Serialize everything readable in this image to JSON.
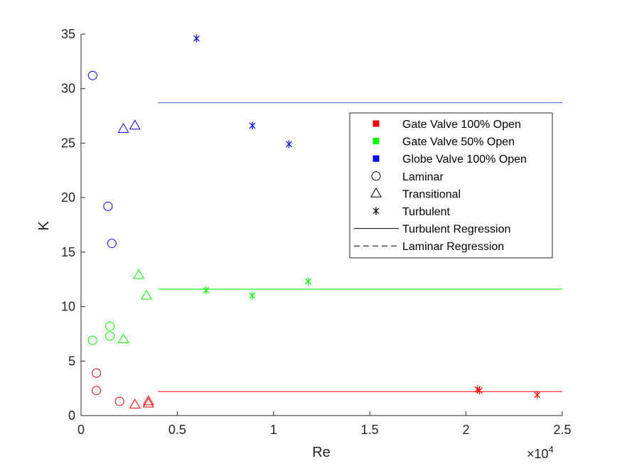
{
  "chart_data": {
    "type": "scatter",
    "xlabel": "Re",
    "ylabel": "K",
    "x_multiplier_label": "×10",
    "x_multiplier_exp": "4",
    "xlim": [
      0,
      25000
    ],
    "ylim": [
      0,
      35
    ],
    "xticks": [
      0,
      5000,
      10000,
      15000,
      20000,
      25000
    ],
    "xtick_labels": [
      "0",
      "0.5",
      "1",
      "1.5",
      "2",
      "2.5"
    ],
    "yticks": [
      0,
      5,
      10,
      15,
      20,
      25,
      30,
      35
    ],
    "ytick_labels": [
      "0",
      "5",
      "10",
      "15",
      "20",
      "25",
      "30",
      "35"
    ],
    "grid": false,
    "legend_position": "top-right",
    "colors": {
      "gate_100": "#ff0000",
      "gate_50": "#00ff00",
      "globe_100": "#0000ff",
      "axis": "#262626"
    },
    "legend": [
      {
        "label": "Gate Valve 100% Open",
        "kind": "square",
        "color": "#ff0000"
      },
      {
        "label": "Gate Valve 50% Open",
        "kind": "square",
        "color": "#00ff00"
      },
      {
        "label": "Globe Valve 100% Open",
        "kind": "square",
        "color": "#0000ff"
      },
      {
        "label": "Laminar",
        "kind": "circle",
        "color": "#000000"
      },
      {
        "label": "Transitional",
        "kind": "triangle",
        "color": "#000000"
      },
      {
        "label": "Turbulent",
        "kind": "asterisk",
        "color": "#000000"
      },
      {
        "label": "Turbulent Regression",
        "kind": "solid-line",
        "color": "#000000"
      },
      {
        "label": "Laminar Regression",
        "kind": "dashed-line",
        "color": "#000000"
      }
    ],
    "series": [
      {
        "name": "Gate Valve 100% Open",
        "regime": "Laminar",
        "marker": "circle",
        "color": "#ff0000",
        "points": [
          [
            800,
            3.9
          ],
          [
            800,
            2.3
          ],
          [
            2000,
            1.3
          ]
        ]
      },
      {
        "name": "Gate Valve 100% Open",
        "regime": "Transitional",
        "marker": "triangle",
        "color": "#ff0000",
        "points": [
          [
            2800,
            1.0
          ],
          [
            3500,
            1.3
          ],
          [
            3500,
            1.1
          ]
        ]
      },
      {
        "name": "Gate Valve 100% Open",
        "regime": "Turbulent",
        "marker": "asterisk",
        "color": "#ff0000",
        "points": [
          [
            20600,
            2.4
          ],
          [
            20700,
            2.3
          ],
          [
            23700,
            1.9
          ]
        ]
      },
      {
        "name": "Gate Valve 50% Open",
        "regime": "Laminar",
        "marker": "circle",
        "color": "#00ff00",
        "points": [
          [
            600,
            6.9
          ],
          [
            1500,
            7.3
          ],
          [
            1500,
            8.2
          ]
        ]
      },
      {
        "name": "Gate Valve 50% Open",
        "regime": "Transitional",
        "marker": "triangle",
        "color": "#00ff00",
        "points": [
          [
            2200,
            7.0
          ],
          [
            3000,
            12.9
          ],
          [
            3400,
            11.0
          ]
        ]
      },
      {
        "name": "Gate Valve 50% Open",
        "regime": "Turbulent",
        "marker": "asterisk",
        "color": "#00ff00",
        "points": [
          [
            6500,
            11.5
          ],
          [
            8900,
            11.0
          ],
          [
            11800,
            12.3
          ]
        ]
      },
      {
        "name": "Globe Valve 100% Open",
        "regime": "Laminar",
        "marker": "circle",
        "color": "#0000ff",
        "points": [
          [
            600,
            31.2
          ],
          [
            1400,
            19.2
          ],
          [
            1600,
            15.8
          ]
        ]
      },
      {
        "name": "Globe Valve 100% Open",
        "regime": "Transitional",
        "marker": "triangle",
        "color": "#0000ff",
        "points": [
          [
            2200,
            26.3
          ],
          [
            2800,
            26.6
          ]
        ]
      },
      {
        "name": "Globe Valve 100% Open",
        "regime": "Turbulent",
        "marker": "asterisk",
        "color": "#0000ff",
        "points": [
          [
            6000,
            34.6
          ],
          [
            8900,
            26.6
          ],
          [
            10800,
            24.9
          ]
        ]
      }
    ],
    "regressions": [
      {
        "type": "turbulent",
        "color": "#ff0000",
        "x": [
          4000,
          25000
        ],
        "y": [
          2.2,
          2.2
        ]
      },
      {
        "type": "turbulent",
        "color": "#00ff00",
        "x": [
          4000,
          25000
        ],
        "y": [
          11.6,
          11.6
        ]
      },
      {
        "type": "turbulent",
        "color": "#4a66cc",
        "x": [
          4000,
          25000
        ],
        "y": [
          28.7,
          28.7
        ]
      }
    ]
  }
}
